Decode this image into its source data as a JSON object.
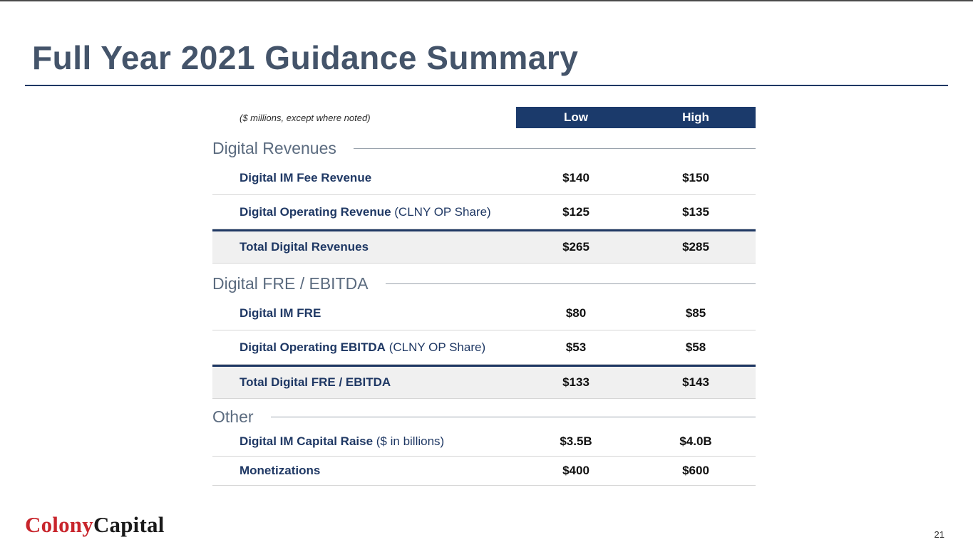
{
  "slide": {
    "title": "Full Year 2021 Guidance Summary",
    "note": "($ millions, except where noted)",
    "page_number": "21",
    "logo": {
      "part1": "Colony",
      "part2": "Capital"
    },
    "colors": {
      "title": "#44546a",
      "navy": "#1f3864",
      "header_bg": "#1b3a6b",
      "section_header": "#5b6b7f",
      "total_row_bg": "#f0f0f0",
      "logo_red": "#c8252c"
    }
  },
  "table": {
    "columns": {
      "low": "Low",
      "high": "High"
    },
    "sections": [
      {
        "header": "Digital Revenues",
        "rows": [
          {
            "label": "Digital IM Fee Revenue",
            "suffix": "",
            "low": "$140",
            "high": "$150"
          },
          {
            "label": "Digital Operating Revenue",
            "suffix": " (CLNY OP Share)",
            "low": "$125",
            "high": "$135"
          },
          {
            "label": "Total Digital Revenues",
            "suffix": "",
            "low": "$265",
            "high": "$285",
            "total": true
          }
        ]
      },
      {
        "header": "Digital FRE / EBITDA",
        "rows": [
          {
            "label": "Digital IM FRE",
            "suffix": "",
            "low": "$80",
            "high": "$85"
          },
          {
            "label": "Digital Operating EBITDA",
            "suffix": " (CLNY OP Share)",
            "low": "$53",
            "high": "$58"
          },
          {
            "label": "Total Digital FRE / EBITDA",
            "suffix": "",
            "low": "$133",
            "high": "$143",
            "total": true
          }
        ]
      },
      {
        "header": "Other",
        "rows": [
          {
            "label": "Digital IM Capital Raise",
            "suffix": " ($ in billions)",
            "low": "$3.5B",
            "high": "$4.0B"
          },
          {
            "label": "Monetizations",
            "suffix": "",
            "low": "$400",
            "high": "$600"
          }
        ]
      }
    ]
  }
}
